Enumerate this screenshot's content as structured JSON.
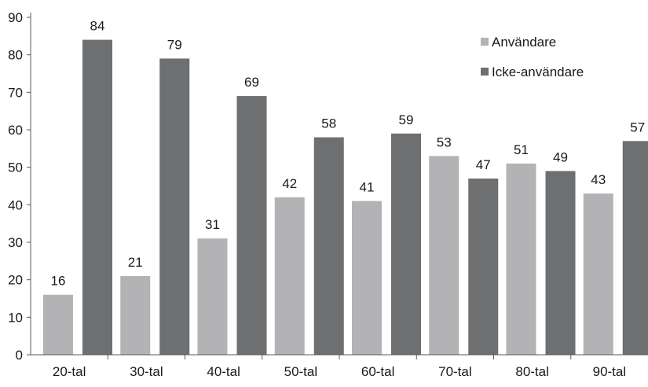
{
  "chart_data": {
    "type": "bar",
    "categories": [
      "20-tal",
      "30-tal",
      "40-tal",
      "50-tal",
      "60-tal",
      "70-tal",
      "80-tal",
      "90-tal"
    ],
    "series": [
      {
        "name": "Användare",
        "values": [
          16,
          21,
          31,
          42,
          41,
          53,
          51,
          43
        ],
        "color": "#b3b3b5"
      },
      {
        "name": "Icke-användare",
        "values": [
          84,
          79,
          69,
          58,
          59,
          47,
          49,
          57
        ],
        "color": "#6e6f71"
      }
    ],
    "ylim": [
      0,
      90
    ],
    "yticks": [
      0,
      10,
      20,
      30,
      40,
      50,
      60,
      70,
      80,
      90
    ],
    "grid": false,
    "legend_position": "top-right",
    "data_labels": true
  }
}
